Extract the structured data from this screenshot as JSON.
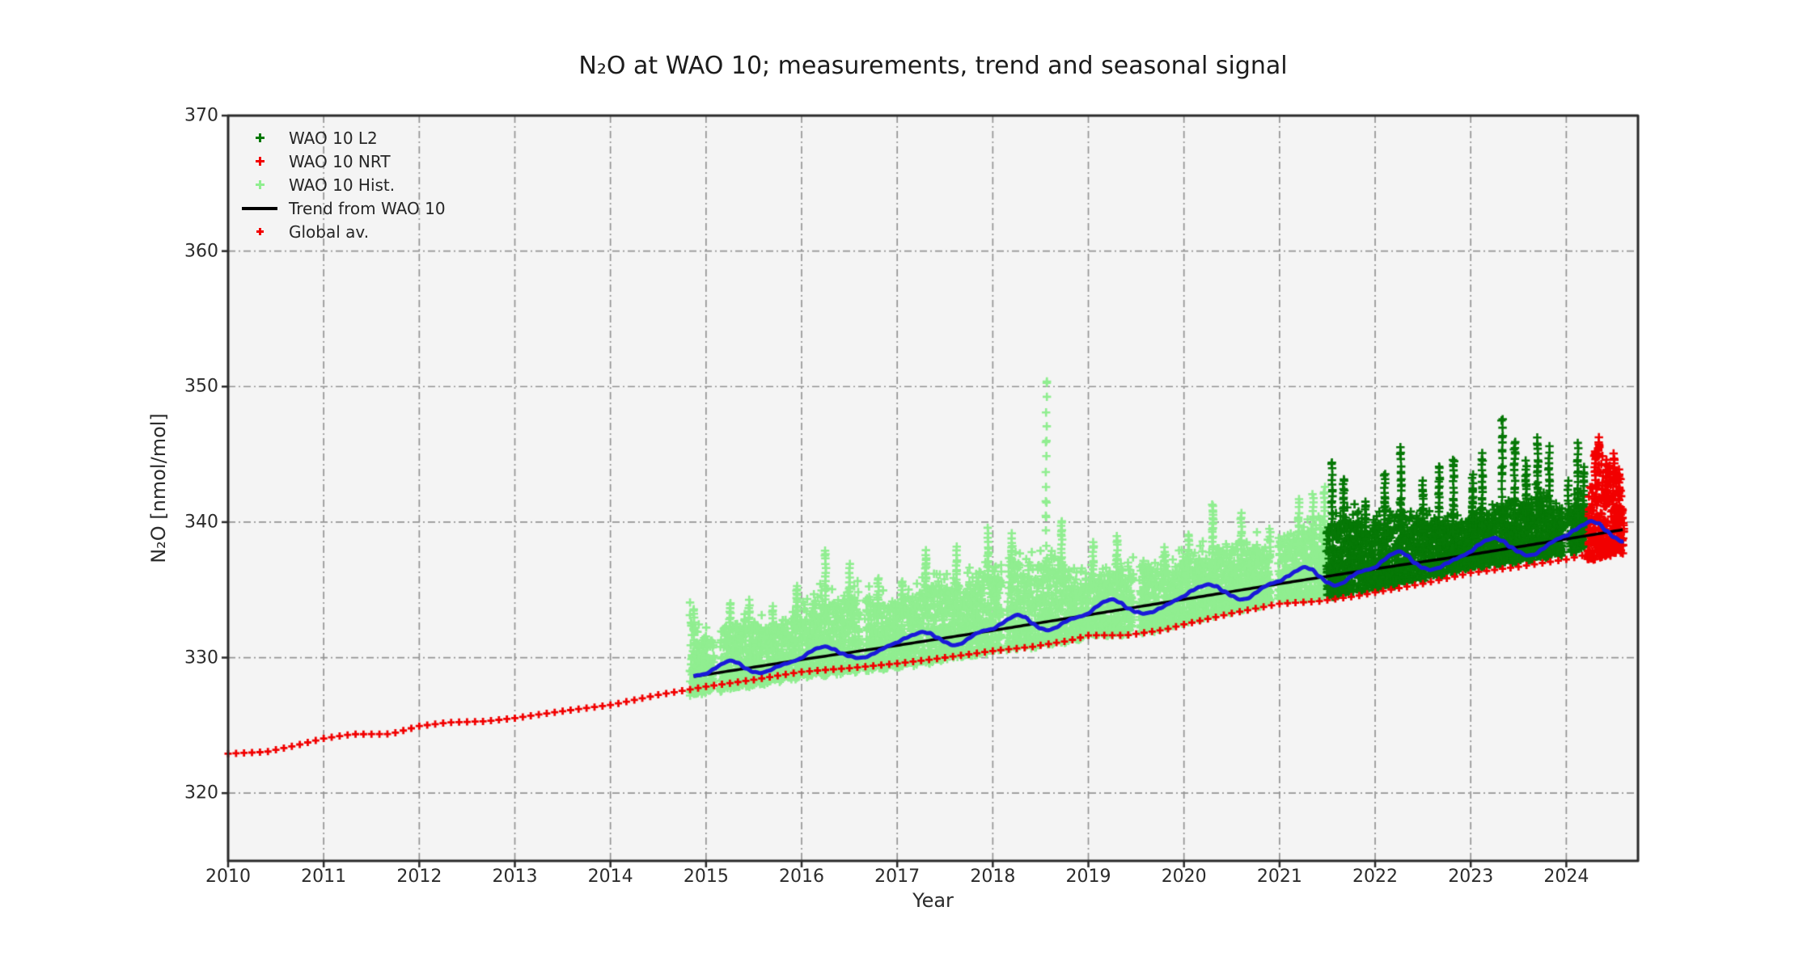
{
  "chart_data": {
    "type": "scatter",
    "title": "N₂O at WAO 10; measurements, trend and seasonal signal",
    "xlabel": "Year",
    "ylabel": "N₂O [nmol/mol]",
    "xlim": [
      2010,
      2024.75
    ],
    "ylim": [
      315,
      370
    ],
    "x_ticks": [
      2010,
      2011,
      2012,
      2013,
      2014,
      2015,
      2016,
      2017,
      2018,
      2019,
      2020,
      2021,
      2022,
      2023,
      2024
    ],
    "y_ticks": [
      320,
      330,
      340,
      350,
      360,
      370
    ],
    "grid": {
      "visible": true,
      "style": "dash-dot",
      "color": "#949494"
    },
    "plot_background": "#f4f4f4",
    "outer_background": "#ffffff",
    "spine_color": "#2a2a2a",
    "tick_label_color": "#2b2b2b",
    "title_color": "#1c1c1c",
    "legend": {
      "position": "upper-left",
      "frame": false,
      "entries": [
        {
          "label": "WAO 10 L2",
          "marker": "plus",
          "color": "#067806"
        },
        {
          "label": "WAO 10 NRT",
          "marker": "plus",
          "color": "#f20000"
        },
        {
          "label": "WAO 10 Hist.",
          "marker": "plus",
          "color": "#90ee90"
        },
        {
          "label": "Trend from WAO 10",
          "marker": "line",
          "color": "#000000"
        },
        {
          "label": "Global av.",
          "marker": "plus-small",
          "color": "#f20000"
        }
      ]
    },
    "series": [
      {
        "name": "WAO 10 Hist.",
        "type": "scatter",
        "marker": "plus",
        "color": "#90ee90",
        "span": [
          2014.84,
          2021.497
        ],
        "band_top_anchors": [
          [
            2014.84,
            333.4
          ],
          [
            2014.95,
            331.2
          ],
          [
            2015.1,
            331.8
          ],
          [
            2015.3,
            332.2
          ],
          [
            2015.5,
            332.6
          ],
          [
            2015.75,
            332.4
          ],
          [
            2016.0,
            333.2
          ],
          [
            2016.2,
            334.6
          ],
          [
            2016.4,
            334.0
          ],
          [
            2016.6,
            334.6
          ],
          [
            2016.8,
            334.2
          ],
          [
            2017.0,
            334.0
          ],
          [
            2017.2,
            334.8
          ],
          [
            2017.4,
            335.6
          ],
          [
            2017.6,
            335.2
          ],
          [
            2017.8,
            335.8
          ],
          [
            2018.0,
            336.4
          ],
          [
            2018.2,
            337.2
          ],
          [
            2018.45,
            336.6
          ],
          [
            2018.6,
            337.0
          ],
          [
            2018.8,
            336.2
          ],
          [
            2019.0,
            335.8
          ],
          [
            2019.2,
            336.4
          ],
          [
            2019.5,
            336.8
          ],
          [
            2019.75,
            336.4
          ],
          [
            2020.0,
            337.0
          ],
          [
            2020.2,
            337.6
          ],
          [
            2020.5,
            338.2
          ],
          [
            2020.75,
            338.0
          ],
          [
            2021.0,
            338.6
          ],
          [
            2021.2,
            339.2
          ],
          [
            2021.5,
            339.6
          ]
        ],
        "band_bottom_offset_anchors": [
          [
            2014.84,
            -0.5
          ],
          [
            2016.0,
            -0.35
          ],
          [
            2018.0,
            -0.1
          ],
          [
            2020.0,
            0.1
          ],
          [
            2021.5,
            0.25
          ]
        ],
        "gaps": [
          [
            2015.08,
            2015.14
          ],
          [
            2016.62,
            2016.66
          ],
          [
            2018.1,
            2018.14
          ],
          [
            2019.47,
            2019.53
          ],
          [
            2020.9,
            2020.98
          ]
        ],
        "spikes": [
          [
            2014.87,
            333.6
          ],
          [
            2015.25,
            334.1
          ],
          [
            2015.45,
            334.3
          ],
          [
            2015.7,
            333.9
          ],
          [
            2015.95,
            335.4
          ],
          [
            2016.25,
            338.0
          ],
          [
            2016.5,
            337.0
          ],
          [
            2016.8,
            335.9
          ],
          [
            2017.05,
            335.7
          ],
          [
            2017.3,
            338.0
          ],
          [
            2017.62,
            338.3
          ],
          [
            2017.95,
            339.6
          ],
          [
            2018.2,
            339.2
          ],
          [
            2018.56,
            350.4
          ],
          [
            2018.72,
            340.1
          ],
          [
            2019.05,
            338.6
          ],
          [
            2019.3,
            339.0
          ],
          [
            2019.8,
            338.2
          ],
          [
            2020.05,
            339.1
          ],
          [
            2020.3,
            341.3
          ],
          [
            2020.6,
            340.7
          ],
          [
            2020.9,
            339.6
          ],
          [
            2021.2,
            341.8
          ],
          [
            2021.35,
            342.1
          ],
          [
            2021.47,
            342.6
          ]
        ]
      },
      {
        "name": "WAO 10 L2",
        "type": "scatter",
        "marker": "plus",
        "color": "#067806",
        "span": [
          2021.5,
          2024.22
        ],
        "band_top_anchors": [
          [
            2021.5,
            339.8
          ],
          [
            2021.7,
            340.4
          ],
          [
            2021.9,
            339.6
          ],
          [
            2022.1,
            340.0
          ],
          [
            2022.3,
            340.4
          ],
          [
            2022.5,
            339.8
          ],
          [
            2022.7,
            340.2
          ],
          [
            2022.9,
            340.0
          ],
          [
            2023.1,
            340.6
          ],
          [
            2023.3,
            341.0
          ],
          [
            2023.5,
            341.4
          ],
          [
            2023.7,
            341.8
          ],
          [
            2023.9,
            340.8
          ],
          [
            2024.0,
            340.6
          ],
          [
            2024.1,
            341.4
          ],
          [
            2024.22,
            341.0
          ]
        ],
        "band_bottom_offset_anchors": [
          [
            2021.5,
            0.25
          ],
          [
            2024.22,
            0.45
          ]
        ],
        "gaps": [
          [
            2023.97,
            2024.03
          ]
        ],
        "spikes": [
          [
            2021.55,
            344.4
          ],
          [
            2021.67,
            343.2
          ],
          [
            2021.9,
            341.6
          ],
          [
            2022.1,
            343.6
          ],
          [
            2022.27,
            345.6
          ],
          [
            2022.5,
            343.1
          ],
          [
            2022.67,
            344.1
          ],
          [
            2022.82,
            344.7
          ],
          [
            2023.02,
            343.6
          ],
          [
            2023.12,
            345.1
          ],
          [
            2023.33,
            347.6
          ],
          [
            2023.46,
            346.0
          ],
          [
            2023.58,
            344.6
          ],
          [
            2023.7,
            346.3
          ],
          [
            2023.82,
            345.6
          ],
          [
            2024.02,
            343.1
          ],
          [
            2024.12,
            345.9
          ],
          [
            2024.18,
            344.1
          ]
        ]
      },
      {
        "name": "WAO 10 NRT",
        "type": "scatter",
        "marker": "plus",
        "color": "#f20000",
        "span": [
          2024.23,
          2024.6
        ],
        "band_top_anchors": [
          [
            2024.23,
            341.0
          ],
          [
            2024.3,
            344.0
          ],
          [
            2024.34,
            345.8
          ],
          [
            2024.4,
            342.5
          ],
          [
            2024.46,
            344.8
          ],
          [
            2024.52,
            343.5
          ],
          [
            2024.58,
            341.5
          ],
          [
            2024.6,
            340.0
          ]
        ],
        "band_bottom_anchors": [
          [
            2024.23,
            337.2
          ],
          [
            2024.6,
            337.8
          ]
        ],
        "gaps": [],
        "spikes": [
          [
            2024.3,
            345.3
          ],
          [
            2024.34,
            346.3
          ],
          [
            2024.42,
            344.6
          ],
          [
            2024.5,
            345.1
          ],
          [
            2024.55,
            343.9
          ]
        ]
      },
      {
        "name": "Global av.",
        "type": "scatter",
        "marker": "plus-small",
        "color": "#f20000",
        "cadence_per_year": 12,
        "span": [
          2010.0,
          2024.42
        ],
        "anchors": [
          [
            2010.0,
            322.9
          ],
          [
            2010.4,
            323.0
          ],
          [
            2010.7,
            323.45
          ],
          [
            2011.0,
            324.0
          ],
          [
            2011.3,
            324.35
          ],
          [
            2011.7,
            324.4
          ],
          [
            2012.0,
            325.0
          ],
          [
            2012.3,
            325.25
          ],
          [
            2012.7,
            325.3
          ],
          [
            2013.0,
            325.5
          ],
          [
            2013.5,
            326.0
          ],
          [
            2014.0,
            326.5
          ],
          [
            2014.5,
            327.3
          ],
          [
            2015.0,
            327.9
          ],
          [
            2015.5,
            328.35
          ],
          [
            2016.0,
            328.9
          ],
          [
            2016.5,
            329.2
          ],
          [
            2017.0,
            329.6
          ],
          [
            2017.5,
            330.05
          ],
          [
            2018.0,
            330.5
          ],
          [
            2018.4,
            330.75
          ],
          [
            2018.8,
            331.2
          ],
          [
            2019.0,
            331.6
          ],
          [
            2019.4,
            331.65
          ],
          [
            2019.8,
            332.1
          ],
          [
            2020.0,
            332.5
          ],
          [
            2020.5,
            333.3
          ],
          [
            2021.0,
            333.95
          ],
          [
            2021.4,
            334.1
          ],
          [
            2021.8,
            334.5
          ],
          [
            2022.0,
            334.8
          ],
          [
            2022.5,
            335.5
          ],
          [
            2023.0,
            336.3
          ],
          [
            2023.5,
            336.7
          ],
          [
            2024.0,
            337.2
          ],
          [
            2024.42,
            337.9
          ]
        ]
      },
      {
        "name": "Trend from WAO 10",
        "type": "line",
        "color": "#000000",
        "linewidth": 3.5,
        "points": [
          [
            2014.87,
            328.6
          ],
          [
            2016.0,
            329.85
          ],
          [
            2017.0,
            330.9
          ],
          [
            2018.0,
            332.0
          ],
          [
            2019.0,
            333.15
          ],
          [
            2020.0,
            334.3
          ],
          [
            2021.0,
            335.45
          ],
          [
            2022.0,
            336.55
          ],
          [
            2023.0,
            337.6
          ],
          [
            2024.0,
            338.75
          ],
          [
            2024.6,
            339.45
          ]
        ]
      },
      {
        "name": "Trend + seasonal signal",
        "type": "line",
        "color": "#1a1ad9",
        "linewidth": 5,
        "span": [
          2014.87,
          2024.6
        ],
        "seasonal_monthly_offsets": [
          0.15,
          0.45,
          0.68,
          0.8,
          0.55,
          0.05,
          -0.34,
          -0.6,
          -0.56,
          -0.3,
          -0.08,
          0.05
        ],
        "amplitude": {
          "base": 0.85,
          "growth_per_year": 0.05,
          "ref_year": 2015
        }
      }
    ],
    "render_seed": 77
  }
}
